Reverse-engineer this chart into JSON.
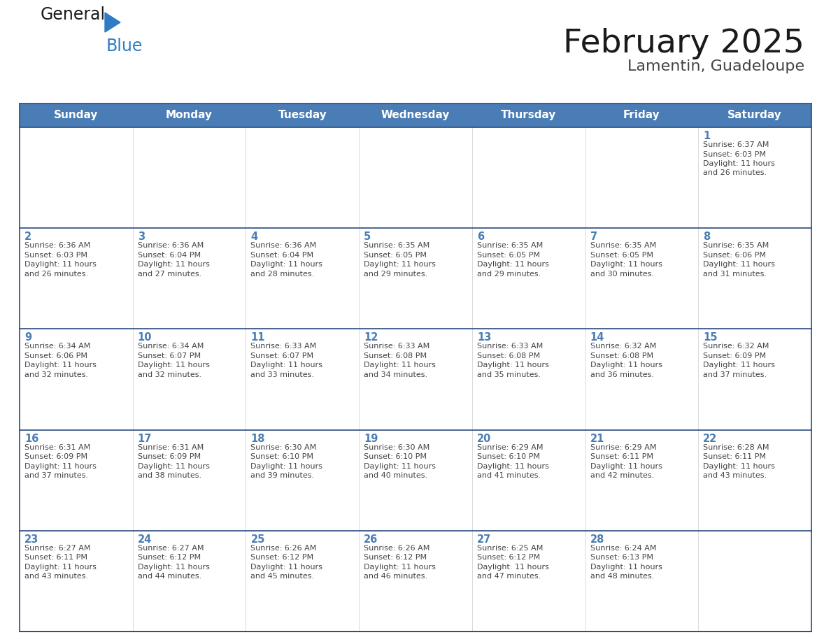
{
  "title": "February 2025",
  "subtitle": "Lamentin, Guadeloupe",
  "days_of_week": [
    "Sunday",
    "Monday",
    "Tuesday",
    "Wednesday",
    "Thursday",
    "Friday",
    "Saturday"
  ],
  "header_bg": "#4a7db5",
  "header_text": "#FFFFFF",
  "cell_bg_white": "#FFFFFF",
  "row_border_color": "#2c4a7c",
  "outer_border_color": "#2c4a7c",
  "title_color": "#1a1a1a",
  "subtitle_color": "#444444",
  "day_num_color": "#4a7db5",
  "text_color": "#444444",
  "logo_general_color": "#1a1a1a",
  "logo_blue_color": "#2e7cc4",
  "calendar": [
    [
      {
        "day": null,
        "sunrise": null,
        "sunset": null,
        "daylight": null
      },
      {
        "day": null,
        "sunrise": null,
        "sunset": null,
        "daylight": null
      },
      {
        "day": null,
        "sunrise": null,
        "sunset": null,
        "daylight": null
      },
      {
        "day": null,
        "sunrise": null,
        "sunset": null,
        "daylight": null
      },
      {
        "day": null,
        "sunrise": null,
        "sunset": null,
        "daylight": null
      },
      {
        "day": null,
        "sunrise": null,
        "sunset": null,
        "daylight": null
      },
      {
        "day": 1,
        "sunrise": "6:37 AM",
        "sunset": "6:03 PM",
        "daylight": "11 hours and 26 minutes."
      }
    ],
    [
      {
        "day": 2,
        "sunrise": "6:36 AM",
        "sunset": "6:03 PM",
        "daylight": "11 hours and 26 minutes."
      },
      {
        "day": 3,
        "sunrise": "6:36 AM",
        "sunset": "6:04 PM",
        "daylight": "11 hours and 27 minutes."
      },
      {
        "day": 4,
        "sunrise": "6:36 AM",
        "sunset": "6:04 PM",
        "daylight": "11 hours and 28 minutes."
      },
      {
        "day": 5,
        "sunrise": "6:35 AM",
        "sunset": "6:05 PM",
        "daylight": "11 hours and 29 minutes."
      },
      {
        "day": 6,
        "sunrise": "6:35 AM",
        "sunset": "6:05 PM",
        "daylight": "11 hours and 29 minutes."
      },
      {
        "day": 7,
        "sunrise": "6:35 AM",
        "sunset": "6:05 PM",
        "daylight": "11 hours and 30 minutes."
      },
      {
        "day": 8,
        "sunrise": "6:35 AM",
        "sunset": "6:06 PM",
        "daylight": "11 hours and 31 minutes."
      }
    ],
    [
      {
        "day": 9,
        "sunrise": "6:34 AM",
        "sunset": "6:06 PM",
        "daylight": "11 hours and 32 minutes."
      },
      {
        "day": 10,
        "sunrise": "6:34 AM",
        "sunset": "6:07 PM",
        "daylight": "11 hours and 32 minutes."
      },
      {
        "day": 11,
        "sunrise": "6:33 AM",
        "sunset": "6:07 PM",
        "daylight": "11 hours and 33 minutes."
      },
      {
        "day": 12,
        "sunrise": "6:33 AM",
        "sunset": "6:08 PM",
        "daylight": "11 hours and 34 minutes."
      },
      {
        "day": 13,
        "sunrise": "6:33 AM",
        "sunset": "6:08 PM",
        "daylight": "11 hours and 35 minutes."
      },
      {
        "day": 14,
        "sunrise": "6:32 AM",
        "sunset": "6:08 PM",
        "daylight": "11 hours and 36 minutes."
      },
      {
        "day": 15,
        "sunrise": "6:32 AM",
        "sunset": "6:09 PM",
        "daylight": "11 hours and 37 minutes."
      }
    ],
    [
      {
        "day": 16,
        "sunrise": "6:31 AM",
        "sunset": "6:09 PM",
        "daylight": "11 hours and 37 minutes."
      },
      {
        "day": 17,
        "sunrise": "6:31 AM",
        "sunset": "6:09 PM",
        "daylight": "11 hours and 38 minutes."
      },
      {
        "day": 18,
        "sunrise": "6:30 AM",
        "sunset": "6:10 PM",
        "daylight": "11 hours and 39 minutes."
      },
      {
        "day": 19,
        "sunrise": "6:30 AM",
        "sunset": "6:10 PM",
        "daylight": "11 hours and 40 minutes."
      },
      {
        "day": 20,
        "sunrise": "6:29 AM",
        "sunset": "6:10 PM",
        "daylight": "11 hours and 41 minutes."
      },
      {
        "day": 21,
        "sunrise": "6:29 AM",
        "sunset": "6:11 PM",
        "daylight": "11 hours and 42 minutes."
      },
      {
        "day": 22,
        "sunrise": "6:28 AM",
        "sunset": "6:11 PM",
        "daylight": "11 hours and 43 minutes."
      }
    ],
    [
      {
        "day": 23,
        "sunrise": "6:27 AM",
        "sunset": "6:11 PM",
        "daylight": "11 hours and 43 minutes."
      },
      {
        "day": 24,
        "sunrise": "6:27 AM",
        "sunset": "6:12 PM",
        "daylight": "11 hours and 44 minutes."
      },
      {
        "day": 25,
        "sunrise": "6:26 AM",
        "sunset": "6:12 PM",
        "daylight": "11 hours and 45 minutes."
      },
      {
        "day": 26,
        "sunrise": "6:26 AM",
        "sunset": "6:12 PM",
        "daylight": "11 hours and 46 minutes."
      },
      {
        "day": 27,
        "sunrise": "6:25 AM",
        "sunset": "6:12 PM",
        "daylight": "11 hours and 47 minutes."
      },
      {
        "day": 28,
        "sunrise": "6:24 AM",
        "sunset": "6:13 PM",
        "daylight": "11 hours and 48 minutes."
      },
      {
        "day": null,
        "sunrise": null,
        "sunset": null,
        "daylight": null
      }
    ]
  ]
}
